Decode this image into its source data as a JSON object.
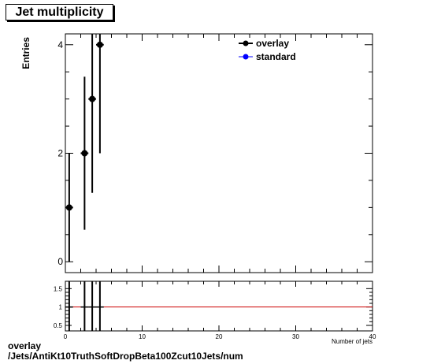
{
  "title": "Jet multiplicity",
  "footer": {
    "line1": "overlay",
    "line2": "/Jets/AntiKt10TruthSoftDropBeta100Zcut10Jets/num"
  },
  "colors": {
    "overlay": "#000000",
    "standard": "#0000ff",
    "ratio_line": "#cc0000"
  },
  "chart_data": [
    {
      "type": "scatter",
      "title": "Jet multiplicity",
      "ylabel": "Entries",
      "xlabel": "Number of jets",
      "xlim": [
        0,
        40
      ],
      "ylim": [
        -0.2,
        4.2
      ],
      "y_ticks": [
        0,
        2,
        4
      ],
      "legend": "top-right",
      "series": [
        {
          "name": "overlay",
          "color": "#000000",
          "x": [
            0.5,
            2.5,
            3.5,
            4.5
          ],
          "y": [
            1,
            2,
            3,
            4
          ],
          "yerr": [
            1,
            1.41,
            1.73,
            2
          ],
          "xerr": 0.5
        },
        {
          "name": "standard",
          "color": "#0000ff",
          "x": [],
          "y": []
        }
      ]
    },
    {
      "type": "scatter",
      "xlim": [
        0,
        40
      ],
      "ylim": [
        0.35,
        1.7
      ],
      "y_ticks": [
        0.5,
        1,
        1.5
      ],
      "x_ticks": [
        0,
        10,
        20,
        30,
        40
      ],
      "reference_line": 1,
      "series": [
        {
          "name": "ratio",
          "color": "#000000",
          "x": [
            0.5,
            2.5,
            3.5,
            4.5
          ],
          "y": [
            1,
            1,
            1,
            1
          ]
        }
      ]
    }
  ]
}
